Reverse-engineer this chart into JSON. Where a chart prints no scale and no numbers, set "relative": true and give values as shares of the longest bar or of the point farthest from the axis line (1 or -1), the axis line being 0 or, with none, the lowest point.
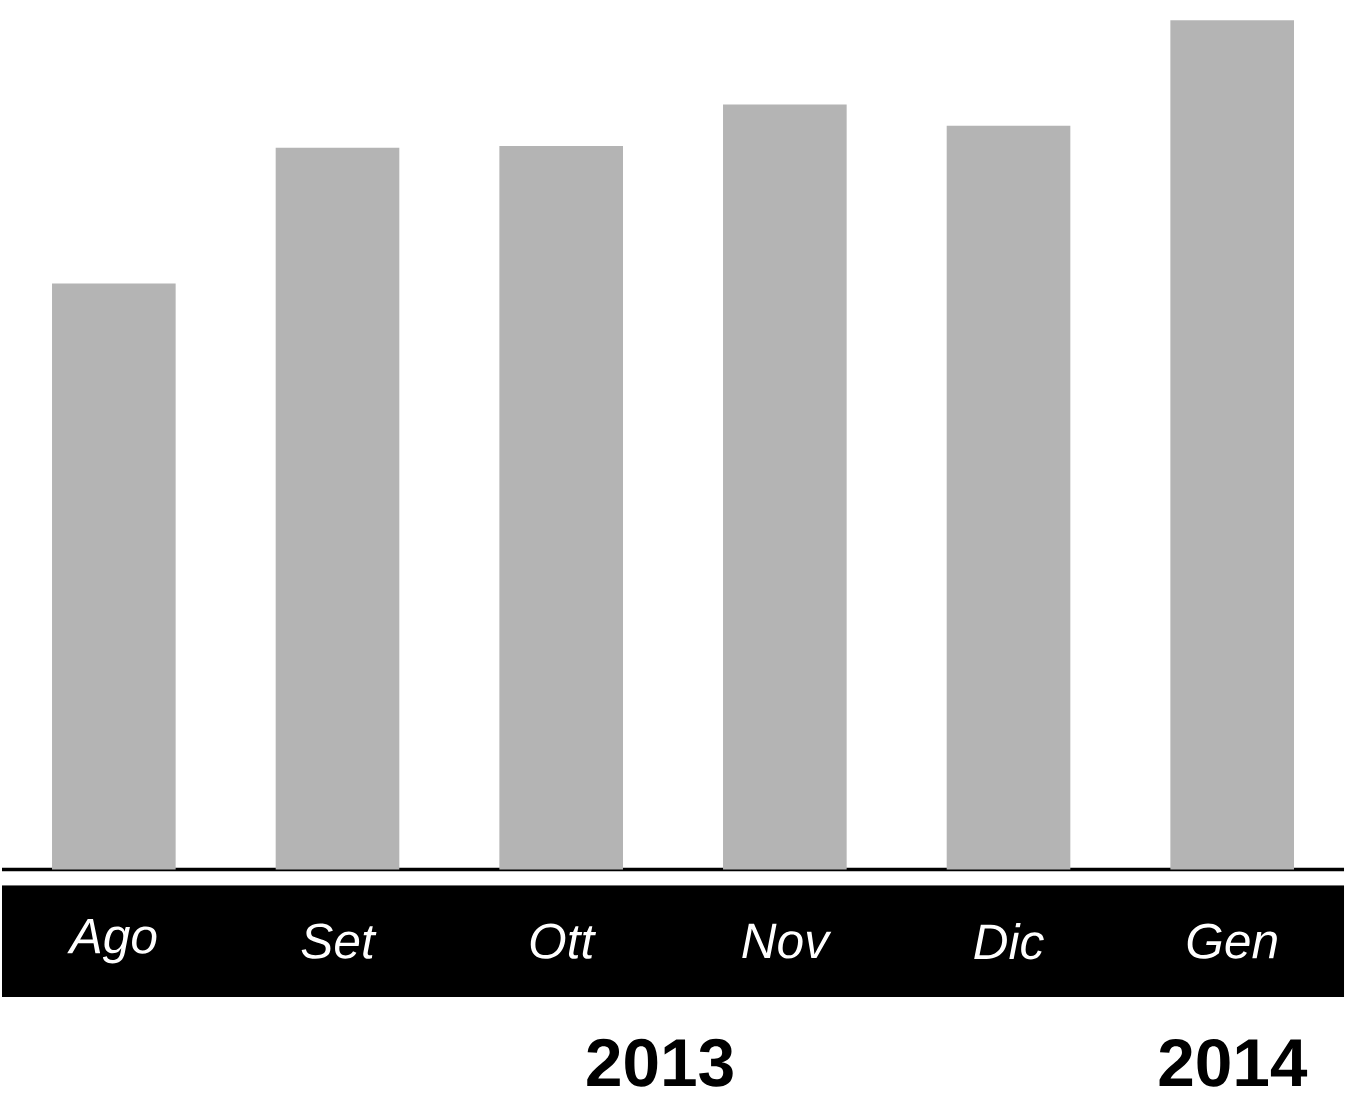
{
  "chart_data": {
    "type": "bar",
    "relative": true,
    "categories": [
      "Ago",
      "Set",
      "Ott",
      "Nov",
      "Dic",
      "Gen"
    ],
    "values": [
      0.69,
      0.85,
      0.852,
      0.901,
      0.876,
      1
    ],
    "color": "#b4b4b4",
    "annotations": [
      "2013",
      "2014"
    ]
  }
}
